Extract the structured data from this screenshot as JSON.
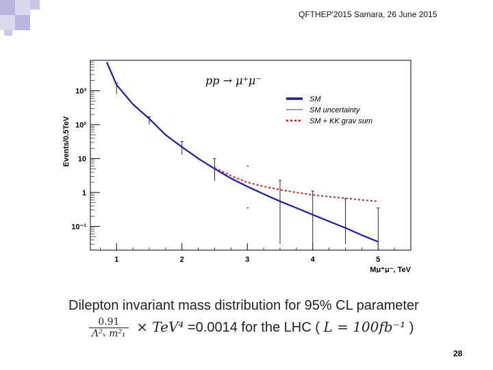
{
  "header": {
    "text": "QFTHEP'2015 Samara,  26 June 2015"
  },
  "caption": {
    "line1": "Dilepton invariant mass distribution for 95% CL parameter",
    "frac_num": "0.91",
    "frac_den": "Λ²ₓ m²₁",
    "times": "× TeV⁴",
    "value": "=0.0014 for the LHC (",
    "lumi": "L = 100fb⁻¹",
    "close": ")"
  },
  "page_number": "28",
  "colors": {
    "sm": "#1a1ab0",
    "kk": "#cc1f1f",
    "deco1": "#b8b8de",
    "deco2": "#d8d8ee"
  },
  "chart_data": {
    "type": "line",
    "process_label": "pp → μ⁺μ⁻",
    "xlabel": "M_{μ⁺μ⁻}, TeV",
    "ylabel": "Events/0.5TeV",
    "xlim": [
      0.6,
      5.5
    ],
    "ylim_log10": [
      -1.7,
      3.9
    ],
    "x_ticks": [
      {
        "v": 1,
        "label": "1"
      },
      {
        "v": 2,
        "label": "2"
      },
      {
        "v": 3,
        "label": "3"
      },
      {
        "v": 4,
        "label": "4"
      },
      {
        "v": 5,
        "label": "5"
      }
    ],
    "y_ticks": [
      {
        "v": 3,
        "label": "10³"
      },
      {
        "v": 2,
        "label": "10²"
      },
      {
        "v": 1,
        "label": "10"
      },
      {
        "v": 0,
        "label": "1"
      },
      {
        "v": -1,
        "label": "10⁻¹"
      }
    ],
    "legend": [
      {
        "name": "SM",
        "style": "thick-blue"
      },
      {
        "name": "SM uncertainty",
        "style": "thin-black"
      },
      {
        "name": "SM + KK grav sum",
        "style": "dotted-red"
      }
    ],
    "series": [
      {
        "name": "SM",
        "x": [
          0.85,
          1,
          1.25,
          1.5,
          1.75,
          2,
          2.25,
          2.5,
          2.75,
          3,
          3.25,
          3.5,
          3.75,
          4,
          4.25,
          4.5,
          4.75,
          5
        ],
        "y": [
          7000,
          1500,
          400,
          150,
          50,
          22,
          10,
          5,
          2.6,
          1.5,
          0.9,
          0.55,
          0.35,
          0.22,
          0.14,
          0.09,
          0.055,
          0.035
        ]
      },
      {
        "name": "SM + KK grav sum",
        "x": [
          2.5,
          2.75,
          3,
          3.25,
          3.5,
          3.75,
          4,
          4.25,
          4.5,
          4.75,
          5
        ],
        "y": [
          5.3,
          3.1,
          2.0,
          1.5,
          1.2,
          1.0,
          0.85,
          0.75,
          0.68,
          0.6,
          0.55
        ]
      }
    ],
    "error_bars": [
      {
        "x": 1,
        "lo": 800,
        "hi": 1700
      },
      {
        "x": 1.5,
        "lo": 100,
        "hi": 170
      },
      {
        "x": 2,
        "lo": 13,
        "hi": 32
      },
      {
        "x": 2.5,
        "lo": 2.2,
        "hi": 10
      },
      {
        "x": 3.5,
        "lo": 0.03,
        "hi": 2.3
      },
      {
        "x": 4,
        "lo": 0.03,
        "hi": 1.1
      },
      {
        "x": 4.5,
        "lo": 0.03,
        "hi": 0.65
      },
      {
        "x": 5,
        "lo": 0.03,
        "hi": 0.35
      }
    ]
  }
}
